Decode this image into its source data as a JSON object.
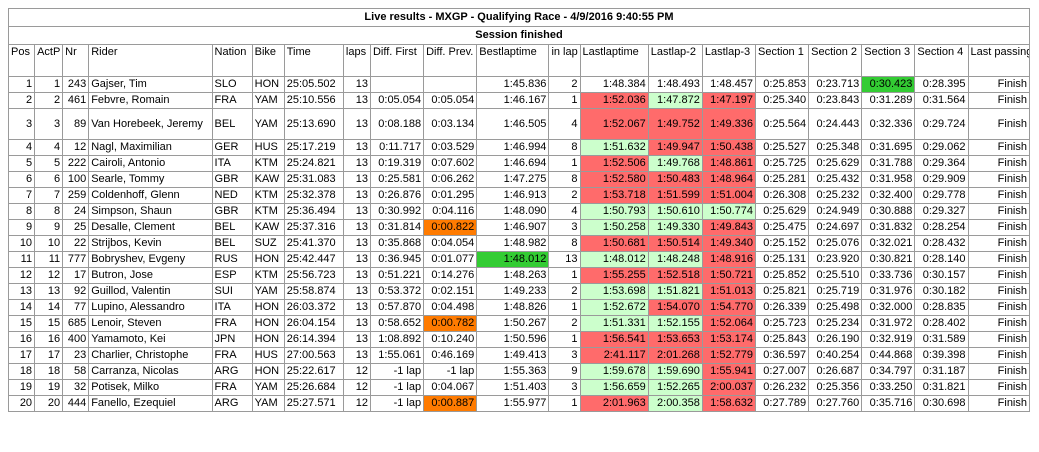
{
  "title": "Live results - MXGP - Qualifying Race - 4/9/2016 9:40:55 PM",
  "status": "Session finished",
  "headers": [
    "Pos",
    "ActP",
    "Nr",
    "Rider",
    "Nation",
    "Bike",
    "Time",
    "laps",
    "Diff. First",
    "Diff. Prev.",
    "Bestlaptime",
    "in lap",
    "Lastlaptime",
    "Lastlap-2",
    "Lastlap-3",
    "Section 1",
    "Section 2",
    "Section 3",
    "Section 4",
    "Last passing"
  ],
  "colors": {
    "green": "#ccffcc",
    "red": "#ff6b6b",
    "best": "#33cc33",
    "orange": "#ff7b00"
  },
  "rows": [
    {
      "pos": "1",
      "actp": "1",
      "nr": "243",
      "rider": "Gajser, Tim",
      "nation": "SLO",
      "bike": "HON",
      "time": "25:05.502",
      "laps": "13",
      "diff_first": "",
      "diff_prev": "",
      "bestlap": "1:45.836",
      "inlap": "2",
      "last": "1:48.384",
      "last2": "1:48.493",
      "last3": "1:48.457",
      "s1": "0:25.853",
      "s2": "0:23.713",
      "s3": "0:30.423",
      "s4": "0:28.395",
      "passing": "Finish",
      "hl": {
        "s3": "best"
      }
    },
    {
      "pos": "2",
      "actp": "2",
      "nr": "461",
      "rider": "Febvre, Romain",
      "nation": "FRA",
      "bike": "YAM",
      "time": "25:10.556",
      "laps": "13",
      "diff_first": "0:05.054",
      "diff_prev": "0:05.054",
      "bestlap": "1:46.167",
      "inlap": "1",
      "last": "1:52.036",
      "last2": "1:47.872",
      "last3": "1:47.197",
      "s1": "0:25.340",
      "s2": "0:23.843",
      "s3": "0:31.289",
      "s4": "0:31.564",
      "passing": "Finish",
      "hl": {
        "last": "red",
        "last2": "green",
        "last3": "red"
      }
    },
    {
      "pos": "3",
      "actp": "3",
      "nr": "89",
      "rider": "Van Horebeek, Jeremy",
      "nation": "BEL",
      "bike": "YAM",
      "time": "25:13.690",
      "laps": "13",
      "diff_first": "0:08.188",
      "diff_prev": "0:03.134",
      "bestlap": "1:46.505",
      "inlap": "4",
      "last": "1:52.067",
      "last2": "1:49.752",
      "last3": "1:49.336",
      "s1": "0:25.564",
      "s2": "0:24.443",
      "s3": "0:32.336",
      "s4": "0:29.724",
      "passing": "Finish",
      "tall": true,
      "hl": {
        "last": "red",
        "last2": "red",
        "last3": "red"
      }
    },
    {
      "pos": "4",
      "actp": "4",
      "nr": "12",
      "rider": "Nagl, Maximilian",
      "nation": "GER",
      "bike": "HUS",
      "time": "25:17.219",
      "laps": "13",
      "diff_first": "0:11.717",
      "diff_prev": "0:03.529",
      "bestlap": "1:46.994",
      "inlap": "8",
      "last": "1:51.632",
      "last2": "1:49.947",
      "last3": "1:50.438",
      "s1": "0:25.527",
      "s2": "0:25.348",
      "s3": "0:31.695",
      "s4": "0:29.062",
      "passing": "Finish",
      "hl": {
        "last": "green",
        "last2": "red",
        "last3": "red"
      }
    },
    {
      "pos": "5",
      "actp": "5",
      "nr": "222",
      "rider": "Cairoli, Antonio",
      "nation": "ITA",
      "bike": "KTM",
      "time": "25:24.821",
      "laps": "13",
      "diff_first": "0:19.319",
      "diff_prev": "0:07.602",
      "bestlap": "1:46.694",
      "inlap": "1",
      "last": "1:52.506",
      "last2": "1:49.768",
      "last3": "1:48.861",
      "s1": "0:25.725",
      "s2": "0:25.629",
      "s3": "0:31.788",
      "s4": "0:29.364",
      "passing": "Finish",
      "hl": {
        "last": "red",
        "last2": "green",
        "last3": "red"
      }
    },
    {
      "pos": "6",
      "actp": "6",
      "nr": "100",
      "rider": "Searle, Tommy",
      "nation": "GBR",
      "bike": "KAW",
      "time": "25:31.083",
      "laps": "13",
      "diff_first": "0:25.581",
      "diff_prev": "0:06.262",
      "bestlap": "1:47.275",
      "inlap": "8",
      "last": "1:52.580",
      "last2": "1:50.483",
      "last3": "1:48.964",
      "s1": "0:25.281",
      "s2": "0:25.432",
      "s3": "0:31.958",
      "s4": "0:29.909",
      "passing": "Finish",
      "hl": {
        "last": "red",
        "last2": "red",
        "last3": "red"
      }
    },
    {
      "pos": "7",
      "actp": "7",
      "nr": "259",
      "rider": "Coldenhoff, Glenn",
      "nation": "NED",
      "bike": "KTM",
      "time": "25:32.378",
      "laps": "13",
      "diff_first": "0:26.876",
      "diff_prev": "0:01.295",
      "bestlap": "1:46.913",
      "inlap": "2",
      "last": "1:53.718",
      "last2": "1:51.599",
      "last3": "1:51.004",
      "s1": "0:26.308",
      "s2": "0:25.232",
      "s3": "0:32.400",
      "s4": "0:29.778",
      "passing": "Finish",
      "hl": {
        "last": "red",
        "last2": "red",
        "last3": "red"
      }
    },
    {
      "pos": "8",
      "actp": "8",
      "nr": "24",
      "rider": "Simpson, Shaun",
      "nation": "GBR",
      "bike": "KTM",
      "time": "25:36.494",
      "laps": "13",
      "diff_first": "0:30.992",
      "diff_prev": "0:04.116",
      "bestlap": "1:48.090",
      "inlap": "4",
      "last": "1:50.793",
      "last2": "1:50.610",
      "last3": "1:50.774",
      "s1": "0:25.629",
      "s2": "0:24.949",
      "s3": "0:30.888",
      "s4": "0:29.327",
      "passing": "Finish",
      "hl": {
        "last": "green",
        "last2": "green",
        "last3": "green"
      }
    },
    {
      "pos": "9",
      "actp": "9",
      "nr": "25",
      "rider": "Desalle, Clement",
      "nation": "BEL",
      "bike": "KAW",
      "time": "25:37.316",
      "laps": "13",
      "diff_first": "0:31.814",
      "diff_prev": "0:00.822",
      "bestlap": "1:46.907",
      "inlap": "3",
      "last": "1:50.258",
      "last2": "1:49.330",
      "last3": "1:49.843",
      "s1": "0:25.475",
      "s2": "0:24.697",
      "s3": "0:31.832",
      "s4": "0:28.254",
      "passing": "Finish",
      "hl": {
        "diff_prev": "orange",
        "last": "green",
        "last2": "green",
        "last3": "red"
      }
    },
    {
      "pos": "10",
      "actp": "10",
      "nr": "22",
      "rider": "Strijbos, Kevin",
      "nation": "BEL",
      "bike": "SUZ",
      "time": "25:41.370",
      "laps": "13",
      "diff_first": "0:35.868",
      "diff_prev": "0:04.054",
      "bestlap": "1:48.982",
      "inlap": "8",
      "last": "1:50.681",
      "last2": "1:50.514",
      "last3": "1:49.340",
      "s1": "0:25.152",
      "s2": "0:25.076",
      "s3": "0:32.021",
      "s4": "0:28.432",
      "passing": "Finish",
      "hl": {
        "last": "red",
        "last2": "red",
        "last3": "red"
      }
    },
    {
      "pos": "11",
      "actp": "11",
      "nr": "777",
      "rider": "Bobryshev, Evgeny",
      "nation": "RUS",
      "bike": "HON",
      "time": "25:42.447",
      "laps": "13",
      "diff_first": "0:36.945",
      "diff_prev": "0:01.077",
      "bestlap": "1:48.012",
      "inlap": "13",
      "last": "1:48.012",
      "last2": "1:48.248",
      "last3": "1:48.916",
      "s1": "0:25.131",
      "s2": "0:23.920",
      "s3": "0:30.821",
      "s4": "0:28.140",
      "passing": "Finish",
      "hl": {
        "bestlap": "best",
        "last": "green",
        "last2": "green",
        "last3": "red"
      }
    },
    {
      "pos": "12",
      "actp": "12",
      "nr": "17",
      "rider": "Butron, Jose",
      "nation": "ESP",
      "bike": "KTM",
      "time": "25:56.723",
      "laps": "13",
      "diff_first": "0:51.221",
      "diff_prev": "0:14.276",
      "bestlap": "1:48.263",
      "inlap": "1",
      "last": "1:55.255",
      "last2": "1:52.518",
      "last3": "1:50.721",
      "s1": "0:25.852",
      "s2": "0:25.510",
      "s3": "0:33.736",
      "s4": "0:30.157",
      "passing": "Finish",
      "hl": {
        "last": "red",
        "last2": "red",
        "last3": "red"
      }
    },
    {
      "pos": "13",
      "actp": "13",
      "nr": "92",
      "rider": "Guillod, Valentin",
      "nation": "SUI",
      "bike": "YAM",
      "time": "25:58.874",
      "laps": "13",
      "diff_first": "0:53.372",
      "diff_prev": "0:02.151",
      "bestlap": "1:49.233",
      "inlap": "2",
      "last": "1:53.698",
      "last2": "1:51.821",
      "last3": "1:51.013",
      "s1": "0:25.821",
      "s2": "0:25.719",
      "s3": "0:31.976",
      "s4": "0:30.182",
      "passing": "Finish",
      "hl": {
        "last": "green",
        "last2": "green",
        "last3": "red"
      }
    },
    {
      "pos": "14",
      "actp": "14",
      "nr": "77",
      "rider": "Lupino, Alessandro",
      "nation": "ITA",
      "bike": "HON",
      "time": "26:03.372",
      "laps": "13",
      "diff_first": "0:57.870",
      "diff_prev": "0:04.498",
      "bestlap": "1:48.826",
      "inlap": "1",
      "last": "1:52.672",
      "last2": "1:54.070",
      "last3": "1:54.770",
      "s1": "0:26.339",
      "s2": "0:25.498",
      "s3": "0:32.000",
      "s4": "0:28.835",
      "passing": "Finish",
      "hl": {
        "last": "green",
        "last2": "red",
        "last3": "red"
      }
    },
    {
      "pos": "15",
      "actp": "15",
      "nr": "685",
      "rider": "Lenoir, Steven",
      "nation": "FRA",
      "bike": "HON",
      "time": "26:04.154",
      "laps": "13",
      "diff_first": "0:58.652",
      "diff_prev": "0:00.782",
      "bestlap": "1:50.267",
      "inlap": "2",
      "last": "1:51.331",
      "last2": "1:52.155",
      "last3": "1:52.064",
      "s1": "0:25.723",
      "s2": "0:25.234",
      "s3": "0:31.972",
      "s4": "0:28.402",
      "passing": "Finish",
      "hl": {
        "diff_prev": "orange",
        "last": "green",
        "last2": "green",
        "last3": "red"
      }
    },
    {
      "pos": "16",
      "actp": "16",
      "nr": "400",
      "rider": "Yamamoto, Kei",
      "nation": "JPN",
      "bike": "HON",
      "time": "26:14.394",
      "laps": "13",
      "diff_first": "1:08.892",
      "diff_prev": "0:10.240",
      "bestlap": "1:50.596",
      "inlap": "1",
      "last": "1:56.541",
      "last2": "1:53.653",
      "last3": "1:53.174",
      "s1": "0:25.843",
      "s2": "0:26.190",
      "s3": "0:32.919",
      "s4": "0:31.589",
      "passing": "Finish",
      "hl": {
        "last": "red",
        "last2": "red",
        "last3": "red"
      }
    },
    {
      "pos": "17",
      "actp": "17",
      "nr": "23",
      "rider": "Charlier, Christophe",
      "nation": "FRA",
      "bike": "HUS",
      "time": "27:00.563",
      "laps": "13",
      "diff_first": "1:55.061",
      "diff_prev": "0:46.169",
      "bestlap": "1:49.413",
      "inlap": "3",
      "last": "2:41.117",
      "last2": "2:01.268",
      "last3": "1:52.779",
      "s1": "0:36.597",
      "s2": "0:40.254",
      "s3": "0:44.868",
      "s4": "0:39.398",
      "passing": "Finish",
      "hl": {
        "last": "red",
        "last2": "red",
        "last3": "red"
      }
    },
    {
      "pos": "18",
      "actp": "18",
      "nr": "58",
      "rider": "Carranza, Nicolas",
      "nation": "ARG",
      "bike": "HON",
      "time": "25:22.617",
      "laps": "12",
      "diff_first": "-1 lap",
      "diff_prev": "-1 lap",
      "bestlap": "1:55.363",
      "inlap": "9",
      "last": "1:59.678",
      "last2": "1:59.690",
      "last3": "1:55.941",
      "s1": "0:27.007",
      "s2": "0:26.687",
      "s3": "0:34.797",
      "s4": "0:31.187",
      "passing": "Finish",
      "hl": {
        "last": "green",
        "last2": "green",
        "last3": "red"
      }
    },
    {
      "pos": "19",
      "actp": "19",
      "nr": "32",
      "rider": "Potisek, Milko",
      "nation": "FRA",
      "bike": "YAM",
      "time": "25:26.684",
      "laps": "12",
      "diff_first": "-1 lap",
      "diff_prev": "0:04.067",
      "bestlap": "1:51.403",
      "inlap": "3",
      "last": "1:56.659",
      "last2": "1:52.265",
      "last3": "2:00.037",
      "s1": "0:26.232",
      "s2": "0:25.356",
      "s3": "0:33.250",
      "s4": "0:31.821",
      "passing": "Finish",
      "hl": {
        "last": "green",
        "last2": "green",
        "last3": "red"
      }
    },
    {
      "pos": "20",
      "actp": "20",
      "nr": "444",
      "rider": "Fanello, Ezequiel",
      "nation": "ARG",
      "bike": "YAM",
      "time": "25:27.571",
      "laps": "12",
      "diff_first": "-1 lap",
      "diff_prev": "0:00.887",
      "bestlap": "1:55.977",
      "inlap": "1",
      "last": "2:01.963",
      "last2": "2:00.358",
      "last3": "1:58.632",
      "s1": "0:27.789",
      "s2": "0:27.760",
      "s3": "0:35.716",
      "s4": "0:30.698",
      "passing": "Finish",
      "hl": {
        "diff_prev": "orange",
        "last": "red",
        "last2": "green",
        "last3": "red"
      }
    }
  ]
}
